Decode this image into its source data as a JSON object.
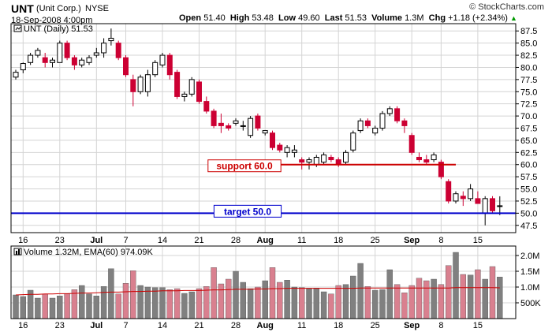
{
  "header": {
    "symbol": "UNT",
    "company": "(Unit Corp.)",
    "exchange": "NYSE",
    "datetime": "18-Sep-2008 4:00pm",
    "open_label": "Open",
    "open": "51.40",
    "high_label": "High",
    "high": "53.48",
    "low_label": "Low",
    "low": "49.60",
    "last_label": "Last",
    "last": "51.53",
    "volume_label": "Volume",
    "volume": "1.3M",
    "chg_label": "Chg",
    "chg": "+1.18 (+2.34%)",
    "watermark": "© StockCharts.com"
  },
  "colors": {
    "up": "#000000",
    "down": "#cc0033",
    "support": "#cc0000",
    "target": "#0000cc",
    "vol_up": "#808080",
    "vol_down": "#d9808f",
    "ema": "#cc0000",
    "grid": "#d4d4d4",
    "frame": "#000000"
  },
  "chart_data": [
    {
      "type": "candlestick",
      "legend": "UNT (Daily) 51.53",
      "ylim": [
        46,
        89
      ],
      "y_ticks": [
        47.5,
        50.0,
        52.5,
        55.0,
        57.5,
        60.0,
        62.5,
        65.0,
        67.5,
        70.0,
        72.5,
        75.0,
        77.5,
        80.0,
        82.5,
        85.0,
        87.5
      ],
      "x_ticks": [
        {
          "i": 1,
          "label": "16"
        },
        {
          "i": 6,
          "label": "23"
        },
        {
          "i": 11,
          "label": "Jul",
          "bold": true
        },
        {
          "i": 15,
          "label": "7"
        },
        {
          "i": 20,
          "label": "14"
        },
        {
          "i": 25,
          "label": "21"
        },
        {
          "i": 30,
          "label": "28"
        },
        {
          "i": 34,
          "label": "Aug",
          "bold": true
        },
        {
          "i": 39,
          "label": "11"
        },
        {
          "i": 44,
          "label": "18"
        },
        {
          "i": 49,
          "label": "25"
        },
        {
          "i": 54,
          "label": "Sep",
          "bold": true
        },
        {
          "i": 58,
          "label": "8"
        },
        {
          "i": 63,
          "label": "15"
        }
      ],
      "candles": [
        {
          "o": 78.0,
          "h": 79.5,
          "l": 77.5,
          "c": 79.0
        },
        {
          "o": 79.5,
          "h": 81.0,
          "l": 78.8,
          "c": 80.8
        },
        {
          "o": 81.0,
          "h": 83.0,
          "l": 80.5,
          "c": 82.5
        },
        {
          "o": 82.5,
          "h": 84.0,
          "l": 82.0,
          "c": 83.5
        },
        {
          "o": 82.0,
          "h": 83.0,
          "l": 80.0,
          "c": 81.0
        },
        {
          "o": 81.0,
          "h": 82.0,
          "l": 80.0,
          "c": 81.5
        },
        {
          "o": 81.0,
          "h": 85.5,
          "l": 81.0,
          "c": 85.0
        },
        {
          "o": 85.0,
          "h": 85.5,
          "l": 81.5,
          "c": 82.0
        },
        {
          "o": 82.0,
          "h": 82.5,
          "l": 79.5,
          "c": 80.5
        },
        {
          "o": 80.5,
          "h": 82.0,
          "l": 80.0,
          "c": 81.5
        },
        {
          "o": 81.0,
          "h": 82.5,
          "l": 80.5,
          "c": 82.0
        },
        {
          "o": 82.5,
          "h": 84.0,
          "l": 82.0,
          "c": 83.0
        },
        {
          "o": 83.0,
          "h": 86.0,
          "l": 82.0,
          "c": 85.0
        },
        {
          "o": 85.5,
          "h": 88.0,
          "l": 84.5,
          "c": 86.0
        },
        {
          "o": 85.0,
          "h": 85.5,
          "l": 81.5,
          "c": 82.0
        },
        {
          "o": 82.0,
          "h": 82.5,
          "l": 78.0,
          "c": 78.5
        },
        {
          "o": 77.5,
          "h": 78.5,
          "l": 72.0,
          "c": 75.0
        },
        {
          "o": 75.0,
          "h": 78.5,
          "l": 74.5,
          "c": 78.0
        },
        {
          "o": 75.0,
          "h": 79.5,
          "l": 74.0,
          "c": 78.5
        },
        {
          "o": 78.5,
          "h": 81.5,
          "l": 78.0,
          "c": 81.0
        },
        {
          "o": 80.5,
          "h": 83.0,
          "l": 80.0,
          "c": 82.5
        },
        {
          "o": 82.5,
          "h": 83.0,
          "l": 77.5,
          "c": 78.5
        },
        {
          "o": 79.0,
          "h": 79.5,
          "l": 73.5,
          "c": 74.0
        },
        {
          "o": 74.0,
          "h": 75.0,
          "l": 73.0,
          "c": 74.5
        },
        {
          "o": 74.5,
          "h": 78.0,
          "l": 74.0,
          "c": 77.5
        },
        {
          "o": 77.0,
          "h": 77.5,
          "l": 72.5,
          "c": 73.0
        },
        {
          "o": 73.0,
          "h": 74.0,
          "l": 70.5,
          "c": 71.0
        },
        {
          "o": 71.0,
          "h": 71.5,
          "l": 67.5,
          "c": 68.0
        },
        {
          "o": 68.5,
          "h": 70.5,
          "l": 66.5,
          "c": 68.0
        },
        {
          "o": 68.0,
          "h": 68.5,
          "l": 67.0,
          "c": 67.5
        },
        {
          "o": 68.5,
          "h": 69.5,
          "l": 68.0,
          "c": 69.0
        },
        {
          "o": 68.0,
          "h": 69.0,
          "l": 67.0,
          "c": 68.0
        },
        {
          "o": 66.0,
          "h": 70.0,
          "l": 65.5,
          "c": 69.5
        },
        {
          "o": 70.0,
          "h": 70.5,
          "l": 67.0,
          "c": 67.5
        },
        {
          "o": 66.5,
          "h": 67.0,
          "l": 66.0,
          "c": 67.0
        },
        {
          "o": 66.5,
          "h": 67.0,
          "l": 63.0,
          "c": 63.5
        },
        {
          "o": 64.0,
          "h": 64.5,
          "l": 62.5,
          "c": 63.0
        },
        {
          "o": 62.5,
          "h": 64.0,
          "l": 61.5,
          "c": 63.5
        },
        {
          "o": 62.5,
          "h": 64.0,
          "l": 61.5,
          "c": 63.0
        },
        {
          "o": 61.0,
          "h": 61.5,
          "l": 59.0,
          "c": 60.5
        },
        {
          "o": 60.5,
          "h": 61.5,
          "l": 59.0,
          "c": 61.0
        },
        {
          "o": 60.0,
          "h": 62.0,
          "l": 59.5,
          "c": 61.5
        },
        {
          "o": 60.5,
          "h": 62.5,
          "l": 60.0,
          "c": 62.0
        },
        {
          "o": 61.5,
          "h": 62.0,
          "l": 60.5,
          "c": 61.0
        },
        {
          "o": 61.0,
          "h": 61.5,
          "l": 59.5,
          "c": 60.0
        },
        {
          "o": 60.5,
          "h": 63.0,
          "l": 60.0,
          "c": 62.5
        },
        {
          "o": 63.0,
          "h": 67.0,
          "l": 62.5,
          "c": 66.5
        },
        {
          "o": 67.0,
          "h": 69.5,
          "l": 66.5,
          "c": 69.0
        },
        {
          "o": 69.0,
          "h": 69.5,
          "l": 67.5,
          "c": 68.0
        },
        {
          "o": 66.5,
          "h": 68.0,
          "l": 66.0,
          "c": 67.5
        },
        {
          "o": 67.5,
          "h": 71.0,
          "l": 67.0,
          "c": 70.5
        },
        {
          "o": 70.5,
          "h": 72.0,
          "l": 70.0,
          "c": 71.5
        },
        {
          "o": 71.5,
          "h": 72.0,
          "l": 68.5,
          "c": 69.0
        },
        {
          "o": 69.0,
          "h": 69.5,
          "l": 66.5,
          "c": 68.0
        },
        {
          "o": 66.0,
          "h": 66.5,
          "l": 62.0,
          "c": 62.5
        },
        {
          "o": 61.5,
          "h": 62.5,
          "l": 60.5,
          "c": 61.0
        },
        {
          "o": 61.0,
          "h": 62.0,
          "l": 60.0,
          "c": 60.5
        },
        {
          "o": 61.0,
          "h": 62.5,
          "l": 60.5,
          "c": 62.0
        },
        {
          "o": 60.5,
          "h": 61.0,
          "l": 57.0,
          "c": 57.5
        },
        {
          "o": 56.5,
          "h": 57.0,
          "l": 52.0,
          "c": 52.5
        },
        {
          "o": 52.5,
          "h": 54.5,
          "l": 52.0,
          "c": 54.0
        },
        {
          "o": 53.5,
          "h": 54.5,
          "l": 51.5,
          "c": 53.0
        },
        {
          "o": 53.0,
          "h": 56.0,
          "l": 52.5,
          "c": 55.0
        },
        {
          "o": 53.0,
          "h": 54.5,
          "l": 52.0,
          "c": 52.0
        },
        {
          "o": 50.0,
          "h": 53.5,
          "l": 47.5,
          "c": 53.0
        },
        {
          "o": 53.0,
          "h": 53.5,
          "l": 50.0,
          "c": 50.5
        },
        {
          "o": 51.4,
          "h": 53.48,
          "l": 49.6,
          "c": 51.53
        }
      ],
      "support": {
        "label": "support 60.0",
        "value": 60.0,
        "from_i": 34,
        "to_i": 60
      },
      "target": {
        "label": "target 50.0",
        "value": 50.0
      }
    },
    {
      "type": "bar",
      "legend": "Volume 1.32M, EMA(60) 974.09K",
      "ylim": [
        0,
        2.3
      ],
      "y_ticks": [
        {
          "v": 0.5,
          "label": "500K"
        },
        {
          "v": 1.0,
          "label": "1.0M"
        },
        {
          "v": 1.5,
          "label": "1.5M"
        },
        {
          "v": 2.0,
          "label": "2.0M"
        }
      ],
      "volumes": [
        0.75,
        0.7,
        0.9,
        0.65,
        0.78,
        0.65,
        0.72,
        0.78,
        0.92,
        1.05,
        0.78,
        0.72,
        1.02,
        1.58,
        0.78,
        1.12,
        1.52,
        1.05,
        1.0,
        0.98,
        0.98,
        0.92,
        0.95,
        0.8,
        0.85,
        0.95,
        1.02,
        1.62,
        1.1,
        1.25,
        1.5,
        1.15,
        0.95,
        1.0,
        1.2,
        1.62,
        1.15,
        1.22,
        1.0,
        0.98,
        0.95,
        0.97,
        0.85,
        0.78,
        1.05,
        1.08,
        1.35,
        1.75,
        1.02,
        0.9,
        0.92,
        1.55,
        1.08,
        0.82,
        1.05,
        1.28,
        1.2,
        1.25,
        1.08,
        1.68,
        2.1,
        1.4,
        1.38,
        1.55,
        1.25,
        1.65,
        1.32
      ],
      "ema": [
        0.75,
        0.76,
        0.77,
        0.77,
        0.78,
        0.78,
        0.79,
        0.79,
        0.8,
        0.81,
        0.81,
        0.82,
        0.83,
        0.84,
        0.84,
        0.85,
        0.86,
        0.86,
        0.87,
        0.87,
        0.88,
        0.88,
        0.88,
        0.89,
        0.89,
        0.89,
        0.9,
        0.91,
        0.91,
        0.92,
        0.93,
        0.93,
        0.93,
        0.94,
        0.94,
        0.95,
        0.95,
        0.96,
        0.96,
        0.96,
        0.96,
        0.96,
        0.96,
        0.96,
        0.96,
        0.96,
        0.96,
        0.97,
        0.97,
        0.97,
        0.97,
        0.97,
        0.97,
        0.97,
        0.97,
        0.97,
        0.97,
        0.97,
        0.97,
        0.97,
        0.98,
        0.98,
        0.98,
        0.98,
        0.98,
        0.98,
        0.974
      ]
    }
  ]
}
